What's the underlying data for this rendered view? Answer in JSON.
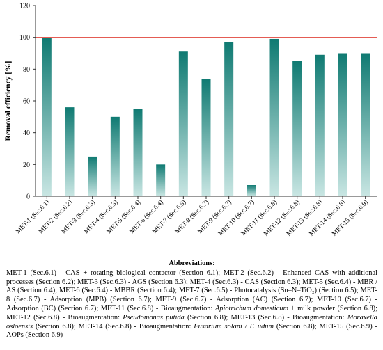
{
  "chart_data": {
    "type": "bar",
    "ylabel": "Removal efficiency [%]",
    "xlabel": "",
    "ylim": [
      0,
      120
    ],
    "yticks": [
      0,
      20,
      40,
      60,
      80,
      100,
      120
    ],
    "reference_line": 100,
    "grid": false,
    "categories": [
      "MET-1 (Sec.6.1)",
      "MET-2 (Sec.6.2)",
      "MET-3 (Sec.6.3)",
      "MET-4 (Sec.6.3)",
      "MET-5 (Sec.6.4)",
      "MET-6 (Sec.6.4)",
      "MET-7 (Sec.6.5)",
      "MET-8 (Sec.6.7)",
      "MET-9 (Sec.6.7)",
      "MET-10 (Sec.6.7)",
      "MET-11 (Sec.6.8)",
      "MET-12 (Sec.6.8)",
      "MET-13 (Sec.6.8)",
      "MET-14 (Sec.6.8)",
      "MET-15 (Sec.6.9)"
    ],
    "values": [
      100,
      56,
      25,
      50,
      55,
      20,
      91,
      74,
      97,
      7,
      99,
      85,
      89,
      90,
      90
    ]
  },
  "colors": {
    "bar_top": "#0f7a72",
    "bar_bottom": "#c9e6e3",
    "reference_line": "#e0443c",
    "axis": "#333333"
  },
  "abbreviations": {
    "title": "Abbreviations:",
    "segments": [
      {
        "t": "MET-1 (Sec.6.1) - CAS + rotating biological contactor (Section 6.1); MET-2 (Sec.6.2) - Enhanced CAS with additional processes (Section 6.2); MET-3 (Sec.6.3) - AGS (Section 6.3); MET-4 (Sec.6.3) - CAS (Section 6.3); MET-5 (Sec.6.4) - MBR / AS (Section 6.4); MET-6 (Sec.6.4) - MBBR (Section 6.4); MET-7 (Sec.6.5) - Photocatalysis (Sn–N–TiO₂) (Section 6.5); MET-8 (Sec.6.7) - Adsorption (MPB) (Section 6.7); MET-9 (Sec.6.7) - Adsorption (AC) (Section 6.7); MET-10 (Sec.6.7) - Adsorption (BC) (Section 6.7); MET-11 (Sec.6.8) - Bioaugmentation: "
      },
      {
        "t": "Apiotrichum domesticum",
        "i": true
      },
      {
        "t": " + milk powder (Section 6.8); MET-12 (Sec.6.8) - Bioaugmentation: "
      },
      {
        "t": "Pseudomonas putida",
        "i": true
      },
      {
        "t": " (Section 6.8); MET-13 (Sec.6.8) - Bioaugmentation: "
      },
      {
        "t": "Moraxella osloensis",
        "i": true
      },
      {
        "t": " (Section 6.8); MET-14 (Sec.6.8) - Bioaugmentation: "
      },
      {
        "t": "Fusarium solani / F. udum",
        "i": true
      },
      {
        "t": " (Section 6.8); MET-15 (Sec.6.9) - AOPs (Section 6.9)"
      }
    ]
  }
}
